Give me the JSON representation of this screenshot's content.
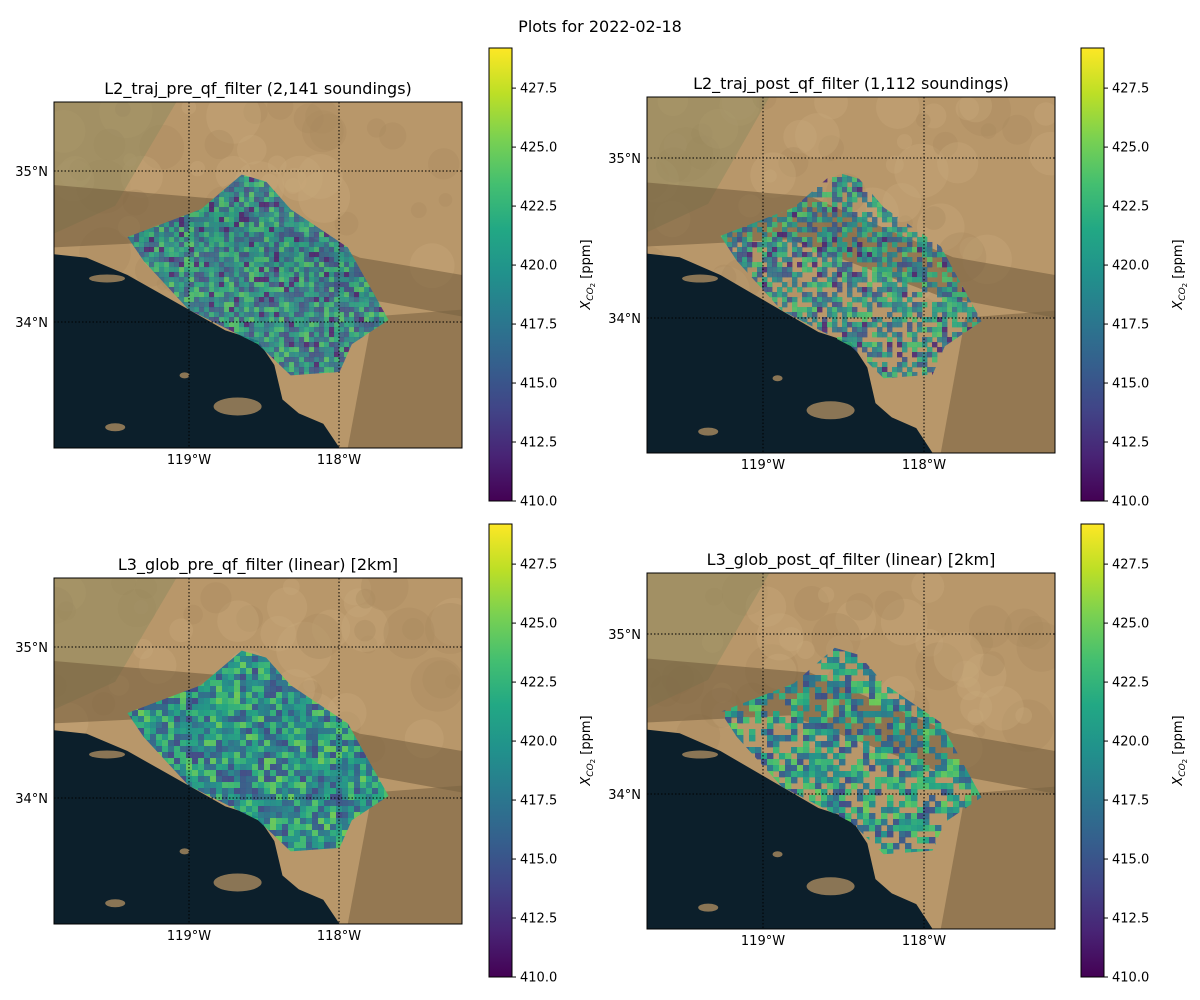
{
  "figure": {
    "title": "Plots for 2022-02-18"
  },
  "colors": {
    "ocean": "#0c1f2b",
    "land": "#b8976a",
    "viridis": [
      "#440154",
      "#482475",
      "#414487",
      "#355f8d",
      "#2a788e",
      "#21918c",
      "#22a884",
      "#44bf70",
      "#7ad151",
      "#bddf26",
      "#fde725"
    ]
  },
  "chart_data": [
    {
      "type": "heatmap",
      "title": "L2_traj_pre_qf_filter (2,141 soundings)",
      "xlabel": "",
      "ylabel": "",
      "x_ticks": [
        "119°W",
        "118°W"
      ],
      "y_ticks": [
        "35°N",
        "34°N"
      ],
      "colorbar": {
        "label": "X_CO2 [ppm]",
        "range": [
          410.0,
          429.2
        ],
        "ticks": [
          "410.0",
          "412.5",
          "415.0",
          "417.5",
          "420.0",
          "422.5",
          "425.0",
          "427.5"
        ]
      },
      "grid": true,
      "count": 2141
    },
    {
      "type": "heatmap",
      "title": "L2_traj_post_qf_filter (1,112 soundings)",
      "xlabel": "",
      "ylabel": "",
      "x_ticks": [
        "119°W",
        "118°W"
      ],
      "y_ticks": [
        "35°N",
        "34°N"
      ],
      "colorbar": {
        "label": "X_CO2 [ppm]",
        "range": [
          410.0,
          429.2
        ],
        "ticks": [
          "410.0",
          "412.5",
          "415.0",
          "417.5",
          "420.0",
          "422.5",
          "425.0",
          "427.5"
        ]
      },
      "grid": true,
      "count": 1112
    },
    {
      "type": "heatmap",
      "title": "L3_glob_pre_qf_filter (linear) [2km]",
      "xlabel": "",
      "ylabel": "",
      "x_ticks": [
        "119°W",
        "118°W"
      ],
      "y_ticks": [
        "35°N",
        "34°N"
      ],
      "colorbar": {
        "label": "X_CO2 [ppm]",
        "range": [
          410.0,
          429.2
        ],
        "ticks": [
          "410.0",
          "412.5",
          "415.0",
          "417.5",
          "420.0",
          "422.5",
          "425.0",
          "427.5"
        ]
      },
      "grid": true
    },
    {
      "type": "heatmap",
      "title": "L3_glob_post_qf_filter (linear) [2km]",
      "xlabel": "",
      "ylabel": "",
      "x_ticks": [
        "119°W",
        "118°W"
      ],
      "y_ticks": [
        "35°N",
        "34°N"
      ],
      "colorbar": {
        "label": "X_CO2 [ppm]",
        "range": [
          410.0,
          429.2
        ],
        "ticks": [
          "410.0",
          "412.5",
          "415.0",
          "417.5",
          "420.0",
          "422.5",
          "425.0",
          "427.5"
        ]
      },
      "grid": true
    }
  ]
}
